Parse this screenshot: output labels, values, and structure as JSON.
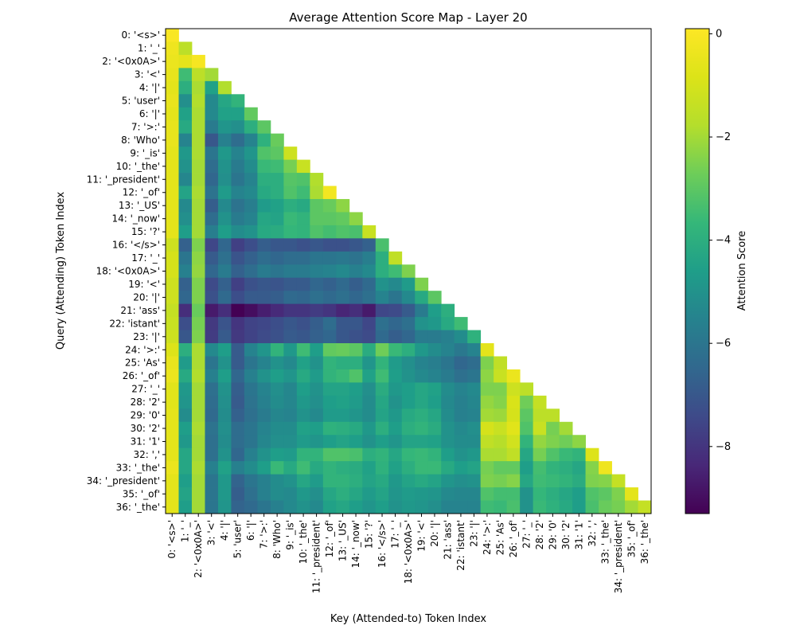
{
  "chart_data": {
    "type": "heatmap",
    "title": "Average Attention Score Map - Layer 20",
    "xlabel": "Key (Attended-to) Token Index",
    "ylabel": "Query (Attending) Token Index",
    "colorbar_label": "Attention Score",
    "colormap": "viridis",
    "color_range": [
      -9.3,
      0.1
    ],
    "colorbar_ticks": [
      0,
      -2,
      -4,
      -6,
      -8
    ],
    "colorbar_tick_labels": [
      "0",
      "−2",
      "−4",
      "−6",
      "−8"
    ],
    "masked": "upper-triangle",
    "tokens": [
      "0: '<s>'",
      "1: '_'",
      "2: '<0x0A>'",
      "3: '<'",
      "4: '|'",
      "5: 'user'",
      "6: '|'",
      "7: '>:'",
      "8: 'Who'",
      "9: '_is'",
      "10: '_the'",
      "11: '_president'",
      "12: '_of'",
      "13: '_US'",
      "14: '_now'",
      "15: '?'",
      "16: '</s>'",
      "17: '_'",
      "18: '<0x0A>'",
      "19: '<'",
      "20: '|'",
      "21: 'ass'",
      "22: 'istant'",
      "23: '|'",
      "24: '>:'",
      "25: 'As'",
      "26: '_of'",
      "27: '_'",
      "28: '2'",
      "29: '0'",
      "30: '2'",
      "31: '1'",
      "32: ','",
      "33: '_the'",
      "34: '_president'",
      "35: '_of'",
      "36: '_the'"
    ],
    "values": [
      [
        0.0
      ],
      [
        -0.3,
        -1.6
      ],
      [
        -0.4,
        -0.6,
        -0.1
      ],
      [
        -0.5,
        -3.5,
        -1.6,
        -2.0
      ],
      [
        -0.6,
        -4.0,
        -1.9,
        -4.5,
        -1.8
      ],
      [
        -0.5,
        -5.1,
        -1.8,
        -5.3,
        -4.3,
        -3.8
      ],
      [
        -0.6,
        -4.5,
        -1.9,
        -5.3,
        -4.5,
        -4.5,
        -2.9
      ],
      [
        -0.5,
        -4.2,
        -1.9,
        -5.8,
        -4.9,
        -5.1,
        -4.0,
        -3.0
      ],
      [
        -0.5,
        -5.5,
        -1.9,
        -7.0,
        -5.6,
        -6.3,
        -5.5,
        -3.9,
        -2.8
      ],
      [
        -0.6,
        -4.8,
        -1.9,
        -6.0,
        -4.8,
        -5.5,
        -4.9,
        -3.2,
        -3.0,
        -1.2
      ],
      [
        -0.6,
        -5.0,
        -2.0,
        -6.3,
        -5.0,
        -5.8,
        -5.2,
        -3.6,
        -3.5,
        -2.6,
        -1.3
      ],
      [
        -0.6,
        -5.4,
        -2.0,
        -6.5,
        -5.1,
        -6.0,
        -5.5,
        -4.0,
        -4.0,
        -3.1,
        -3.2,
        -1.8
      ],
      [
        -0.6,
        -4.4,
        -1.9,
        -6.1,
        -4.7,
        -5.5,
        -5.3,
        -4.2,
        -4.0,
        -3.2,
        -3.5,
        -1.9,
        -0.2
      ],
      [
        -0.6,
        -5.3,
        -2.0,
        -6.8,
        -5.3,
        -6.1,
        -5.7,
        -4.7,
        -4.5,
        -4.0,
        -4.2,
        -3.0,
        -2.8,
        -2.3
      ],
      [
        -0.6,
        -5.1,
        -2.0,
        -6.3,
        -5.0,
        -5.8,
        -5.5,
        -4.3,
        -4.4,
        -3.6,
        -3.8,
        -3.0,
        -3.0,
        -2.9,
        -2.3
      ],
      [
        -0.6,
        -4.6,
        -2.0,
        -5.7,
        -4.6,
        -5.2,
        -5.0,
        -4.2,
        -4.1,
        -3.7,
        -3.8,
        -3.2,
        -3.4,
        -3.2,
        -3.3,
        -1.3
      ],
      [
        -1.2,
        -6.7,
        -2.5,
        -7.5,
        -6.5,
        -7.7,
        -7.3,
        -6.8,
        -7.0,
        -7.0,
        -7.2,
        -7.0,
        -7.2,
        -7.2,
        -7.0,
        -6.7,
        -3.3
      ],
      [
        -1.0,
        -6.0,
        -2.3,
        -6.9,
        -6.2,
        -7.1,
        -6.7,
        -6.3,
        -6.5,
        -6.3,
        -6.3,
        -6.0,
        -6.0,
        -5.9,
        -6.1,
        -5.7,
        -4.0,
        -1.5
      ],
      [
        -1.0,
        -5.6,
        -2.2,
        -6.5,
        -5.8,
        -6.7,
        -6.3,
        -5.8,
        -6.0,
        -5.8,
        -5.8,
        -5.6,
        -5.5,
        -5.3,
        -5.6,
        -5.3,
        -4.0,
        -3.5,
        -2.5
      ],
      [
        -1.2,
        -6.7,
        -2.5,
        -7.4,
        -6.7,
        -7.7,
        -7.2,
        -7.0,
        -7.1,
        -6.9,
        -6.9,
        -6.5,
        -6.7,
        -6.4,
        -6.8,
        -6.4,
        -5.0,
        -5.3,
        -4.7,
        -2.5
      ],
      [
        -1.2,
        -6.5,
        -2.5,
        -7.2,
        -6.4,
        -7.3,
        -6.9,
        -6.9,
        -6.8,
        -6.4,
        -6.5,
        -6.2,
        -6.4,
        -6.2,
        -6.5,
        -6.2,
        -5.5,
        -6.0,
        -5.3,
        -4.2,
        -3.0
      ],
      [
        -1.4,
        -8.2,
        -2.8,
        -8.7,
        -8.2,
        -9.3,
        -9.0,
        -8.6,
        -8.3,
        -8.0,
        -8.0,
        -7.8,
        -8.0,
        -8.4,
        -8.2,
        -8.7,
        -7.5,
        -7.4,
        -6.9,
        -5.8,
        -4.6,
        -4.0
      ],
      [
        -1.3,
        -7.3,
        -2.6,
        -7.9,
        -7.1,
        -8.0,
        -7.6,
        -7.5,
        -7.3,
        -7.0,
        -7.2,
        -6.8,
        -6.3,
        -7.0,
        -7.0,
        -7.5,
        -6.2,
        -6.5,
        -6.2,
        -5.0,
        -4.8,
        -4.2,
        -3.5
      ],
      [
        -1.2,
        -7.0,
        -2.5,
        -7.8,
        -6.9,
        -7.9,
        -7.6,
        -7.4,
        -7.2,
        -6.9,
        -7.0,
        -6.7,
        -6.5,
        -7.0,
        -7.2,
        -7.4,
        -6.4,
        -6.8,
        -6.5,
        -5.8,
        -5.8,
        -5.6,
        -5.2,
        -3.9
      ],
      [
        -0.8,
        -4.0,
        -1.9,
        -5.3,
        -4.6,
        -6.9,
        -5.5,
        -4.9,
        -3.8,
        -4.8,
        -3.5,
        -4.6,
        -2.9,
        -2.8,
        -3.0,
        -4.1,
        -2.7,
        -3.6,
        -4.0,
        -4.8,
        -5.2,
        -5.5,
        -5.9,
        -5.5,
        -0.6
      ],
      [
        -0.5,
        -4.7,
        -1.9,
        -6.0,
        -5.0,
        -6.9,
        -6.0,
        -5.5,
        -5.0,
        -5.3,
        -4.5,
        -5.0,
        -3.8,
        -4.0,
        -4.0,
        -4.9,
        -3.8,
        -4.7,
        -5.1,
        -5.5,
        -5.7,
        -6.0,
        -6.5,
        -6.3,
        -2.5,
        -1.5
      ],
      [
        -0.4,
        -4.2,
        -1.8,
        -5.6,
        -4.6,
        -6.5,
        -5.6,
        -5.0,
        -4.6,
        -4.9,
        -4.2,
        -4.7,
        -3.8,
        -3.6,
        -3.2,
        -4.5,
        -3.5,
        -4.6,
        -5.0,
        -5.3,
        -5.5,
        -5.8,
        -6.2,
        -6.0,
        -2.3,
        -1.3,
        -0.4
      ],
      [
        -0.7,
        -4.8,
        -2.0,
        -6.2,
        -5.0,
        -6.8,
        -6.0,
        -5.5,
        -5.1,
        -5.4,
        -4.6,
        -5.0,
        -4.4,
        -4.4,
        -4.6,
        -5.1,
        -4.1,
        -4.8,
        -4.6,
        -4.3,
        -4.5,
        -5.2,
        -5.5,
        -5.3,
        -2.5,
        -2.5,
        -1.2,
        -1.6
      ],
      [
        -0.7,
        -4.9,
        -2.0,
        -6.3,
        -5.1,
        -6.9,
        -6.1,
        -5.6,
        -5.2,
        -5.4,
        -4.8,
        -5.1,
        -4.6,
        -4.5,
        -4.7,
        -5.2,
        -4.3,
        -5.0,
        -4.6,
        -4.3,
        -4.6,
        -5.3,
        -5.6,
        -5.4,
        -2.2,
        -2.4,
        -0.9,
        -2.7,
        -1.4
      ],
      [
        -0.6,
        -5.2,
        -2.0,
        -6.4,
        -5.2,
        -6.7,
        -6.2,
        -5.8,
        -5.4,
        -5.5,
        -5.0,
        -5.3,
        -4.7,
        -4.7,
        -4.9,
        -5.2,
        -4.4,
        -4.8,
        -4.2,
        -4.0,
        -4.3,
        -5.2,
        -5.6,
        -5.5,
        -2.0,
        -2.1,
        -1.0,
        -3.0,
        -1.6,
        -1.6
      ],
      [
        -0.6,
        -4.6,
        -1.9,
        -6.1,
        -5.1,
        -6.3,
        -6.0,
        -5.5,
        -5.2,
        -5.2,
        -4.5,
        -4.6,
        -3.9,
        -4.0,
        -4.2,
        -4.8,
        -4.0,
        -4.6,
        -4.0,
        -3.8,
        -4.1,
        -5.0,
        -5.3,
        -5.1,
        -1.0,
        -1.3,
        -0.7,
        -3.2,
        -1.3,
        -2.6,
        -2.0
      ],
      [
        -0.6,
        -4.8,
        -2.0,
        -6.2,
        -5.2,
        -6.3,
        -6.0,
        -5.4,
        -5.1,
        -5.1,
        -4.7,
        -4.9,
        -4.6,
        -4.4,
        -4.6,
        -5.0,
        -4.6,
        -4.9,
        -4.4,
        -4.4,
        -4.5,
        -5.0,
        -5.2,
        -5.2,
        -1.5,
        -1.7,
        -1.1,
        -3.8,
        -2.2,
        -2.5,
        -2.7,
        -2.3
      ],
      [
        -0.6,
        -4.3,
        -2.0,
        -6.2,
        -5.0,
        -6.5,
        -5.6,
        -5.0,
        -4.6,
        -4.7,
        -3.8,
        -3.8,
        -3.2,
        -3.2,
        -3.3,
        -4.0,
        -3.8,
        -4.3,
        -3.7,
        -3.6,
        -3.8,
        -4.6,
        -5.0,
        -4.8,
        -1.9,
        -1.9,
        -1.5,
        -4.3,
        -2.6,
        -3.2,
        -3.6,
        -3.8,
        -0.8
      ],
      [
        -0.4,
        -4.3,
        -1.9,
        -5.6,
        -4.5,
        -5.6,
        -5.2,
        -4.6,
        -3.6,
        -4.2,
        -3.5,
        -4.2,
        -3.8,
        -4.0,
        -4.1,
        -4.5,
        -3.9,
        -4.5,
        -4.0,
        -3.6,
        -3.6,
        -4.2,
        -4.6,
        -4.4,
        -2.6,
        -2.9,
        -2.9,
        -4.6,
        -3.4,
        -3.8,
        -4.0,
        -4.3,
        -2.4,
        -0.3
      ],
      [
        -0.6,
        -4.6,
        -2.0,
        -6.0,
        -4.8,
        -6.6,
        -6.0,
        -5.6,
        -5.2,
        -5.0,
        -4.3,
        -4.7,
        -3.8,
        -3.8,
        -4.0,
        -4.4,
        -4.2,
        -4.8,
        -4.4,
        -4.2,
        -4.4,
        -4.9,
        -5.1,
        -5.0,
        -2.5,
        -2.6,
        -2.4,
        -4.3,
        -3.5,
        -3.6,
        -3.8,
        -4.1,
        -2.5,
        -2.4,
        -1.4
      ],
      [
        -0.6,
        -4.4,
        -2.0,
        -6.0,
        -4.8,
        -6.8,
        -6.2,
        -5.6,
        -5.2,
        -5.3,
        -4.8,
        -5.1,
        -4.3,
        -4.0,
        -4.3,
        -4.7,
        -4.4,
        -4.9,
        -4.7,
        -4.8,
        -4.9,
        -5.3,
        -5.4,
        -5.4,
        -3.2,
        -3.4,
        -3.4,
        -5.0,
        -3.7,
        -4.0,
        -4.3,
        -4.6,
        -3.2,
        -3.0,
        -2.5,
        -0.6
      ],
      [
        -0.6,
        -4.6,
        -2.0,
        -6.0,
        -4.9,
        -6.6,
        -6.4,
        -6.0,
        -5.6,
        -5.3,
        -5.0,
        -5.3,
        -4.5,
        -4.3,
        -4.6,
        -4.9,
        -4.6,
        -5.0,
        -4.8,
        -4.9,
        -5.1,
        -5.5,
        -5.5,
        -5.5,
        -3.5,
        -3.6,
        -3.3,
        -5.0,
        -3.6,
        -3.9,
        -4.2,
        -4.6,
        -3.3,
        -2.8,
        -2.6,
        -2.0,
        -1.4
      ]
    ]
  }
}
